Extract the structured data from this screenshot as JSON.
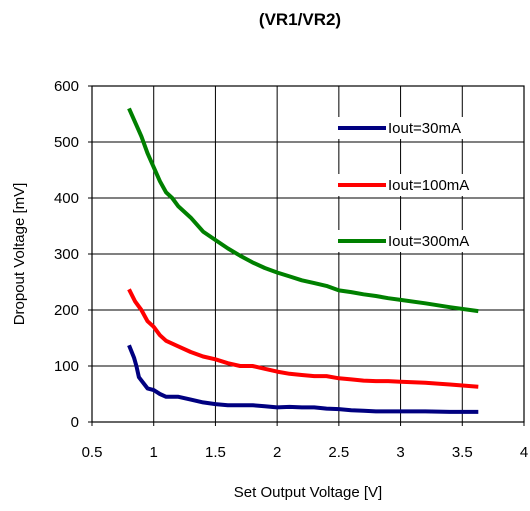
{
  "chart_data": {
    "type": "line",
    "title": "(VR1/VR2)",
    "xlabel": "Set Output Voltage [V]",
    "ylabel": "Dropout Voltage [mV]",
    "xlim": [
      0.5,
      4
    ],
    "ylim": [
      0,
      600
    ],
    "x_ticks": [
      "0.5",
      "1",
      "1.5",
      "2",
      "2.5",
      "3",
      "3.5",
      "4"
    ],
    "y_ticks": [
      "0",
      "100",
      "200",
      "300",
      "400",
      "500",
      "600"
    ],
    "grid": true,
    "legend_position": "top-right",
    "series": [
      {
        "name": "Iout=30mA",
        "color": "#000080",
        "x": [
          0.8,
          0.84,
          0.86,
          0.88,
          0.95,
          1.0,
          1.05,
          1.1,
          1.2,
          1.3,
          1.4,
          1.5,
          1.6,
          1.7,
          1.8,
          1.9,
          2.0,
          2.1,
          2.2,
          2.3,
          2.4,
          2.5,
          2.6,
          2.7,
          2.8,
          2.9,
          3.0,
          3.2,
          3.4,
          3.63
        ],
        "y": [
          137,
          115,
          100,
          80,
          60,
          57,
          50,
          45,
          45,
          40,
          35,
          32,
          30,
          30,
          30,
          28,
          26,
          27,
          26,
          26,
          24,
          23,
          21,
          20,
          19,
          19,
          19,
          19,
          18,
          18
        ]
      },
      {
        "name": "Iout=100mA",
        "color": "#ff0000",
        "x": [
          0.8,
          0.85,
          0.9,
          0.95,
          1.0,
          1.05,
          1.1,
          1.2,
          1.3,
          1.4,
          1.5,
          1.6,
          1.7,
          1.8,
          1.9,
          2.0,
          2.1,
          2.2,
          2.3,
          2.4,
          2.5,
          2.6,
          2.7,
          2.8,
          2.9,
          3.0,
          3.2,
          3.4,
          3.63
        ],
        "y": [
          237,
          215,
          200,
          180,
          170,
          155,
          145,
          135,
          125,
          117,
          112,
          105,
          100,
          100,
          95,
          90,
          86,
          84,
          82,
          82,
          78,
          76,
          74,
          73,
          73,
          72,
          70,
          67,
          63
        ]
      },
      {
        "name": "Iout=300mA",
        "color": "#008000",
        "x": [
          0.8,
          0.85,
          0.9,
          0.95,
          1.0,
          1.05,
          1.1,
          1.15,
          1.2,
          1.3,
          1.4,
          1.5,
          1.6,
          1.7,
          1.8,
          1.9,
          2.0,
          2.1,
          2.2,
          2.3,
          2.4,
          2.5,
          2.6,
          2.7,
          2.8,
          2.9,
          3.0,
          3.2,
          3.4,
          3.63
        ],
        "y": [
          560,
          535,
          510,
          480,
          455,
          430,
          410,
          400,
          385,
          365,
          340,
          325,
          310,
          297,
          285,
          275,
          267,
          260,
          253,
          248,
          243,
          235,
          232,
          228,
          225,
          221,
          218,
          212,
          205,
          198
        ]
      }
    ]
  }
}
